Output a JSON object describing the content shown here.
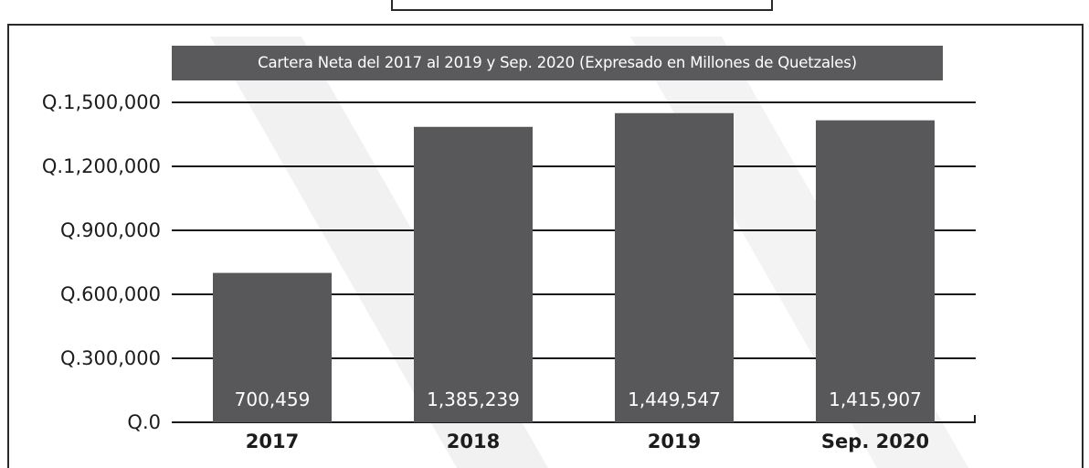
{
  "chart_data": {
    "type": "bar",
    "title": "Cartera Neta del 2017 al 2019 y Sep. 2020 (Expresado en Millones de Quetzales)",
    "categories": [
      "2017",
      "2018",
      "2019",
      "Sep. 2020"
    ],
    "values": [
      700459,
      1385239,
      1449547,
      1415907
    ],
    "data_labels": [
      "700,459",
      "1,385,239",
      "1,449,547",
      "1,415,907"
    ],
    "ylim": [
      0,
      1500000
    ],
    "yticks": [
      0,
      300000,
      600000,
      900000,
      1200000,
      1500000
    ],
    "ytick_labels": [
      "Q.0",
      "Q.300,000",
      "Q.600,000",
      "Q.900,000",
      "Q.1,200,000",
      "Q.1,500,000"
    ],
    "grid": true,
    "legend": "none",
    "bar_color": "#58585a",
    "title_bg_color": "#5a5a5c"
  }
}
